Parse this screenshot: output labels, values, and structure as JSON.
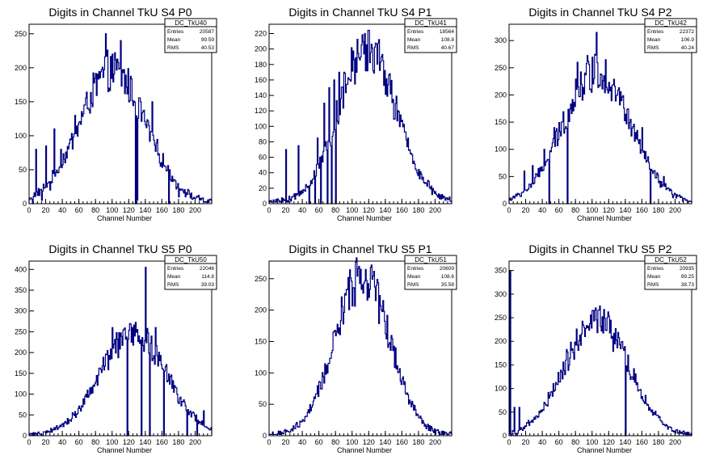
{
  "chart_data": [
    {
      "type": "histogram",
      "title": "Digits in Channel TkU S4 P0",
      "xlabel": "Channel Number",
      "stats": {
        "name": "DC_TkU40",
        "entries": "20587",
        "mean": "99.59",
        "rms": "40.53"
      },
      "xlim": [
        0,
        220
      ],
      "ylim": [
        0,
        264
      ],
      "xticks": [
        0,
        20,
        40,
        60,
        80,
        100,
        120,
        140,
        160,
        180,
        200
      ],
      "yticks": [
        0,
        50,
        100,
        150,
        200,
        250
      ],
      "peak_x": 100,
      "peak_y": 195,
      "sigma": 40,
      "spikes": [
        [
          4,
          0
        ],
        [
          8,
          80
        ],
        [
          15,
          5
        ],
        [
          20,
          85
        ],
        [
          25,
          20
        ],
        [
          30,
          110
        ],
        [
          38,
          80
        ],
        [
          55,
          130
        ],
        [
          60,
          120
        ],
        [
          92,
          250
        ],
        [
          110,
          240
        ],
        [
          128,
          0
        ],
        [
          130,
          5
        ],
        [
          148,
          150
        ],
        [
          168,
          0
        ],
        [
          180,
          10
        ]
      ]
    },
    {
      "type": "histogram",
      "title": "Digits in Channel TkU S4 P1",
      "xlabel": "Channel Number",
      "stats": {
        "name": "DC_TkU41",
        "entries": "18564",
        "mean": "108.8",
        "rms": "40.67"
      },
      "xlim": [
        0,
        220
      ],
      "ylim": [
        0,
        232
      ],
      "xticks": [
        0,
        20,
        40,
        60,
        80,
        100,
        120,
        140,
        160,
        180,
        200
      ],
      "yticks": [
        0,
        20,
        40,
        60,
        80,
        100,
        120,
        140,
        160,
        180,
        200,
        220
      ],
      "peak_x": 118,
      "peak_y": 200,
      "sigma": 35,
      "spikes": [
        [
          20,
          70
        ],
        [
          35,
          75
        ],
        [
          48,
          0
        ],
        [
          55,
          0
        ],
        [
          58,
          85
        ],
        [
          62,
          0
        ],
        [
          66,
          130
        ],
        [
          70,
          0
        ],
        [
          72,
          150
        ],
        [
          75,
          0
        ],
        [
          78,
          160
        ],
        [
          80,
          0
        ],
        [
          84,
          170
        ],
        [
          115,
          220
        ]
      ]
    },
    {
      "type": "histogram",
      "title": "Digits in Channel TkU S4 P2",
      "xlabel": "Channel Number",
      "stats": {
        "name": "DC_TkU42",
        "entries": "22372",
        "mean": "106.9",
        "rms": "40.24"
      },
      "xlim": [
        0,
        220
      ],
      "ylim": [
        0,
        330
      ],
      "xticks": [
        0,
        20,
        40,
        60,
        80,
        100,
        120,
        140,
        160,
        180,
        200
      ],
      "yticks": [
        0,
        50,
        100,
        150,
        200,
        250,
        300
      ],
      "peak_x": 105,
      "peak_y": 245,
      "sigma": 40,
      "spikes": [
        [
          18,
          60
        ],
        [
          28,
          70
        ],
        [
          42,
          100
        ],
        [
          48,
          0
        ],
        [
          54,
          140
        ],
        [
          70,
          0
        ],
        [
          82,
          260
        ],
        [
          105,
          315
        ],
        [
          160,
          140
        ],
        [
          170,
          0
        ],
        [
          174,
          60
        ],
        [
          186,
          50
        ]
      ]
    },
    {
      "type": "histogram",
      "title": "Digits in Channel TkU S5 P0",
      "xlabel": "Channel Number",
      "stats": {
        "name": "DC_TkU50",
        "entries": "22046",
        "mean": "114.8",
        "rms": "39.03"
      },
      "xlim": [
        0,
        220
      ],
      "ylim": [
        0,
        420
      ],
      "xticks": [
        0,
        20,
        40,
        60,
        80,
        100,
        120,
        140,
        160,
        180,
        200
      ],
      "yticks": [
        0,
        50,
        100,
        150,
        200,
        250,
        300,
        350,
        400
      ],
      "peak_x": 125,
      "peak_y": 245,
      "sigma": 40,
      "spikes": [
        [
          100,
          260
        ],
        [
          118,
          0
        ],
        [
          124,
          260
        ],
        [
          135,
          0
        ],
        [
          140,
          405
        ],
        [
          145,
          0
        ],
        [
          152,
          260
        ],
        [
          162,
          0
        ],
        [
          190,
          0
        ],
        [
          202,
          0
        ],
        [
          210,
          60
        ]
      ]
    },
    {
      "type": "histogram",
      "title": "Digits in Channel TkU S5 P1",
      "xlabel": "Channel Number",
      "stats": {
        "name": "DC_TkU51",
        "entries": "20609",
        "mean": "108.6",
        "rms": "35.58"
      },
      "xlim": [
        0,
        220
      ],
      "ylim": [
        0,
        278
      ],
      "xticks": [
        0,
        20,
        40,
        60,
        80,
        100,
        120,
        140,
        160,
        180,
        200
      ],
      "yticks": [
        0,
        50,
        100,
        150,
        200,
        250
      ],
      "peak_x": 112,
      "peak_y": 255,
      "sigma": 33,
      "spikes": [
        [
          110,
          265
        ],
        [
          122,
          268
        ]
      ]
    },
    {
      "type": "histogram",
      "title": "Digits in Channel TkU S5 P2",
      "xlabel": "Channel Number",
      "stats": {
        "name": "DC_TkU52",
        "entries": "20935",
        "mean": "99.25",
        "rms": "38.73"
      },
      "xlim": [
        0,
        220
      ],
      "ylim": [
        0,
        370
      ],
      "xticks": [
        0,
        20,
        40,
        60,
        80,
        100,
        120,
        140,
        160,
        180,
        200
      ],
      "yticks": [
        0,
        50,
        100,
        150,
        200,
        250,
        300,
        350
      ],
      "peak_x": 105,
      "peak_y": 245,
      "sigma": 38,
      "spikes": [
        [
          1,
          350
        ],
        [
          2,
          0
        ],
        [
          6,
          60
        ],
        [
          8,
          0
        ],
        [
          12,
          60
        ],
        [
          140,
          0
        ]
      ]
    }
  ],
  "colors": {
    "line": "#000080",
    "frame": "#000000"
  }
}
